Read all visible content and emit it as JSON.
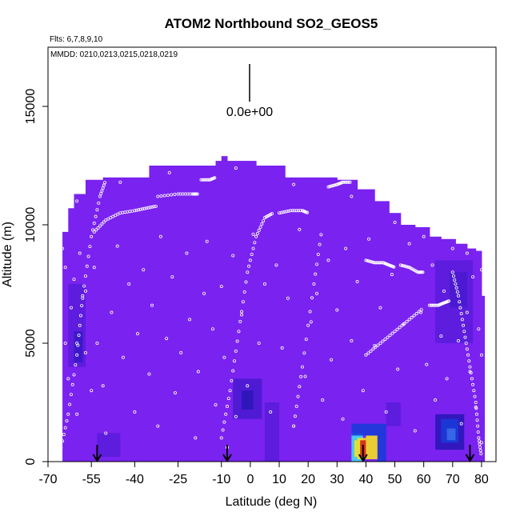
{
  "chart_data": {
    "type": "heatmap",
    "title": "ATOM2 Northbound SO2_GEOS5",
    "subtitle_flights": "Flts: 6,7,8,9,10",
    "subtitle_dates": "MMDD: 0210,0213,0215,0218,0219",
    "xlabel": "Latitude (deg N)",
    "ylabel": "Altitude (m)",
    "xlim": [
      -70,
      85
    ],
    "ylim": [
      0,
      17500
    ],
    "x_ticks": [
      -70,
      -55,
      -40,
      -25,
      -10,
      0,
      10,
      20,
      30,
      40,
      50,
      60,
      70,
      80
    ],
    "x_tick_labels": [
      "-70",
      "-55",
      "-40",
      "-25",
      "-10",
      "0",
      "10",
      "20",
      "30",
      "40",
      "50",
      "60",
      "70",
      "80"
    ],
    "y_ticks": [
      0,
      5000,
      10000,
      15000
    ],
    "y_tick_labels": [
      "0",
      "5000",
      "10000",
      "15000"
    ],
    "scale_label": "0.0e+00",
    "background_color": "#7a22f0",
    "colors": {
      "low": "#7a22f0",
      "mid_low": "#2a17c0",
      "mid": "#1a3ad8",
      "cyan": "#41d8f0",
      "yellow": "#f5e020",
      "red": "#d8201a"
    },
    "column_tops": [
      {
        "x0": -65,
        "x1": -63,
        "top": 9700
      },
      {
        "x0": -63,
        "x1": -61,
        "top": 10700
      },
      {
        "x0": -61,
        "x1": -57,
        "top": 11300
      },
      {
        "x0": -57,
        "x1": -51,
        "top": 11900
      },
      {
        "x0": -51,
        "x1": -35,
        "top": 12000
      },
      {
        "x0": -35,
        "x1": -18,
        "top": 12500
      },
      {
        "x0": -18,
        "x1": -12,
        "top": 12500
      },
      {
        "x0": -12,
        "x1": -10,
        "top": 12700
      },
      {
        "x0": -10,
        "x1": -8,
        "top": 12900
      },
      {
        "x0": -8,
        "x1": 2,
        "top": 12700
      },
      {
        "x0": 2,
        "x1": 12,
        "top": 12500
      },
      {
        "x0": 12,
        "x1": 30,
        "top": 12000
      },
      {
        "x0": 30,
        "x1": 37,
        "top": 11900
      },
      {
        "x0": 37,
        "x1": 43,
        "top": 11500
      },
      {
        "x0": 43,
        "x1": 48,
        "top": 11000
      },
      {
        "x0": 48,
        "x1": 52,
        "top": 10500
      },
      {
        "x0": 52,
        "x1": 57,
        "top": 10000
      },
      {
        "x0": 57,
        "x1": 62,
        "top": 9900
      },
      {
        "x0": 62,
        "x1": 66,
        "top": 9500
      },
      {
        "x0": 66,
        "x1": 71,
        "top": 9400
      },
      {
        "x0": 71,
        "x1": 75,
        "top": 9200
      },
      {
        "x0": 75,
        "x1": 78,
        "top": 9000
      },
      {
        "x0": 78,
        "x1": 80,
        "top": 8900
      },
      {
        "x0": 80,
        "x1": 81,
        "top": 7000
      }
    ],
    "anomalies": [
      {
        "x0": -63,
        "x1": -57,
        "y0": 4000,
        "y1": 7500,
        "color": "#5a1cdc"
      },
      {
        "x0": -61,
        "x1": -58,
        "y0": 4200,
        "y1": 5500,
        "color": "#3a18c8"
      },
      {
        "x0": -6,
        "x1": 4,
        "y0": 1800,
        "y1": 3500,
        "color": "#4a1ad0"
      },
      {
        "x0": -3,
        "x1": 1,
        "y0": 2200,
        "y1": 3000,
        "color": "#2a16b8"
      },
      {
        "x0": 5,
        "x1": 10,
        "y0": 0,
        "y1": 2500,
        "color": "#5a1cdc"
      },
      {
        "x0": -53,
        "x1": -45,
        "y0": 200,
        "y1": 1200,
        "color": "#5a1cdc"
      },
      {
        "x0": 35,
        "x1": 39,
        "y0": 0,
        "y1": 1200,
        "color": "#41d8f0"
      },
      {
        "x0": 36,
        "x1": 37,
        "y0": 200,
        "y1": 900,
        "color": "#f5e020"
      },
      {
        "x0": 37,
        "x1": 40,
        "y0": 100,
        "y1": 1000,
        "color": "#f5e020"
      },
      {
        "x0": 38,
        "x1": 40,
        "y0": 200,
        "y1": 900,
        "color": "#d8201a"
      },
      {
        "x0": 40,
        "x1": 44,
        "y0": 100,
        "y1": 1100,
        "color": "#f5e020"
      },
      {
        "x0": 44,
        "x1": 47,
        "y0": 0,
        "y1": 1200,
        "color": "#1a3ad8"
      },
      {
        "x0": 35,
        "x1": 47,
        "y0": 1100,
        "y1": 1600,
        "color": "#1a3ad8"
      },
      {
        "x0": 64,
        "x1": 74,
        "y0": 500,
        "y1": 2000,
        "color": "#2a16b8"
      },
      {
        "x0": 66,
        "x1": 72,
        "y0": 800,
        "y1": 1800,
        "color": "#1a3ad8"
      },
      {
        "x0": 68,
        "x1": 71,
        "y0": 900,
        "y1": 1400,
        "color": "#3a6ae8"
      },
      {
        "x0": 64,
        "x1": 77,
        "y0": 5000,
        "y1": 8500,
        "color": "#5a1cdc"
      },
      {
        "x0": 69,
        "x1": 75,
        "y0": 6500,
        "y1": 8000,
        "color": "#4a1ad0"
      },
      {
        "x0": 47,
        "x1": 52,
        "y0": 1500,
        "y1": 2500,
        "color": "#5a1cdc"
      }
    ],
    "arrows_lat": [
      -53,
      -8,
      39,
      76
    ],
    "flight_tracks": [
      {
        "lat": [
          -66,
          -63,
          -60,
          -58,
          -55,
          -52,
          -50
        ],
        "alt": [
          300,
          2000,
          4500,
          7000,
          9500,
          11200,
          11900
        ]
      },
      {
        "lat": [
          -54,
          -50,
          -45,
          -40,
          -36,
          -32
        ],
        "alt": [
          9700,
          10200,
          10500,
          10600,
          10700,
          10800
        ]
      },
      {
        "lat": [
          -32,
          -25,
          -20,
          -18
        ],
        "alt": [
          11200,
          11300,
          11300,
          11300
        ]
      },
      {
        "lat": [
          -17,
          -14,
          -12
        ],
        "alt": [
          11900,
          11900,
          12000
        ]
      },
      {
        "lat": [
          -10,
          -7,
          -4,
          -1,
          2,
          5,
          8
        ],
        "alt": [
          1000,
          3000,
          5500,
          8000,
          9500,
          10300,
          10500
        ]
      },
      {
        "lat": [
          10,
          14,
          18,
          20
        ],
        "alt": [
          10500,
          10600,
          10600,
          10500
        ]
      },
      {
        "lat": [
          15,
          18,
          22,
          25
        ],
        "alt": [
          1500,
          4000,
          7500,
          10000
        ]
      },
      {
        "lat": [
          27,
          30,
          32,
          35
        ],
        "alt": [
          11600,
          11700,
          11800,
          11800
        ]
      },
      {
        "lat": [
          40,
          43,
          46,
          48,
          50
        ],
        "alt": [
          8500,
          8400,
          8400,
          8300,
          8200
        ]
      },
      {
        "lat": [
          52,
          55,
          58,
          60
        ],
        "alt": [
          8300,
          8200,
          8000,
          8000
        ]
      },
      {
        "lat": [
          62,
          65,
          67,
          69
        ],
        "alt": [
          6600,
          6600,
          6700,
          6800
        ]
      },
      {
        "lat": [
          40,
          45,
          50,
          55,
          60
        ],
        "alt": [
          4500,
          5000,
          5500,
          6000,
          6500
        ]
      },
      {
        "lat": [
          70,
          72,
          74,
          76,
          78,
          79,
          80
        ],
        "alt": [
          8000,
          7000,
          5500,
          4000,
          2500,
          1000,
          200
        ]
      }
    ],
    "sample_points": [
      [
        -66,
        200
      ],
      [
        -66,
        1500
      ],
      [
        -66,
        3000
      ],
      [
        -66,
        6000
      ],
      [
        -66,
        7800
      ],
      [
        -65,
        9000
      ],
      [
        -64,
        5000
      ],
      [
        -64,
        8200
      ],
      [
        -63,
        3500
      ],
      [
        -62,
        6500
      ],
      [
        -61,
        7700
      ],
      [
        -60,
        5000
      ],
      [
        -60,
        2000
      ],
      [
        -59,
        8800
      ],
      [
        -58,
        6900
      ],
      [
        -57,
        4600
      ],
      [
        -57,
        7200
      ],
      [
        -55,
        3000
      ],
      [
        -54,
        8200
      ],
      [
        -53,
        5000
      ],
      [
        -51,
        3200
      ],
      [
        -50,
        1200
      ],
      [
        -48,
        6300
      ],
      [
        -46,
        9100
      ],
      [
        -44,
        4400
      ],
      [
        -42,
        7500
      ],
      [
        -40,
        2100
      ],
      [
        -39,
        5400
      ],
      [
        -37,
        8100
      ],
      [
        -35,
        3700
      ],
      [
        -34,
        6600
      ],
      [
        -32,
        1500
      ],
      [
        -31,
        9500
      ],
      [
        -29,
        5200
      ],
      [
        -27,
        7800
      ],
      [
        -26,
        2900
      ],
      [
        -24,
        4600
      ],
      [
        -22,
        8800
      ],
      [
        -21,
        6000
      ],
      [
        -19,
        1000
      ],
      [
        -18,
        3800
      ],
      [
        -16,
        7100
      ],
      [
        -15,
        9300
      ],
      [
        -13,
        5600
      ],
      [
        -12,
        2400
      ],
      [
        -10,
        7400
      ],
      [
        -9,
        4400
      ],
      [
        -8,
        600
      ],
      [
        -6,
        8700
      ],
      [
        -5,
        1900
      ],
      [
        -3,
        6200
      ],
      [
        -1,
        3200
      ],
      [
        1,
        9600
      ],
      [
        3,
        5000
      ],
      [
        5,
        7500
      ],
      [
        7,
        2100
      ],
      [
        9,
        8300
      ],
      [
        11,
        4800
      ],
      [
        13,
        6900
      ],
      [
        15,
        1500
      ],
      [
        17,
        9800
      ],
      [
        19,
        3600
      ],
      [
        21,
        5900
      ],
      [
        23,
        7100
      ],
      [
        25,
        2600
      ],
      [
        27,
        8500
      ],
      [
        28,
        4300
      ],
      [
        30,
        6400
      ],
      [
        32,
        1800
      ],
      [
        33,
        9000
      ],
      [
        35,
        5100
      ],
      [
        37,
        7600
      ],
      [
        39,
        3000
      ],
      [
        41,
        9400
      ],
      [
        43,
        4900
      ],
      [
        45,
        6500
      ],
      [
        47,
        2100
      ],
      [
        49,
        7900
      ],
      [
        51,
        3900
      ],
      [
        53,
        5800
      ],
      [
        55,
        9200
      ],
      [
        57,
        1300
      ],
      [
        59,
        6300
      ],
      [
        61,
        4100
      ],
      [
        63,
        8300
      ],
      [
        64,
        2600
      ],
      [
        66,
        5300
      ],
      [
        67,
        7200
      ],
      [
        68,
        3500
      ],
      [
        70,
        9000
      ],
      [
        72,
        5100
      ],
      [
        73,
        1600
      ],
      [
        75,
        6300
      ],
      [
        76,
        3800
      ],
      [
        77,
        7800
      ],
      [
        78,
        2300
      ],
      [
        79,
        5600
      ],
      [
        80,
        800
      ],
      [
        80,
        4500
      ],
      [
        80,
        8100
      ],
      [
        -64,
        10500
      ],
      [
        -60,
        11000
      ],
      [
        -45,
        11800
      ],
      [
        -28,
        12200
      ],
      [
        -5,
        12400
      ],
      [
        15,
        11700
      ],
      [
        35,
        11200
      ],
      [
        50,
        10100
      ],
      [
        60,
        9500
      ],
      [
        75,
        8800
      ]
    ]
  }
}
